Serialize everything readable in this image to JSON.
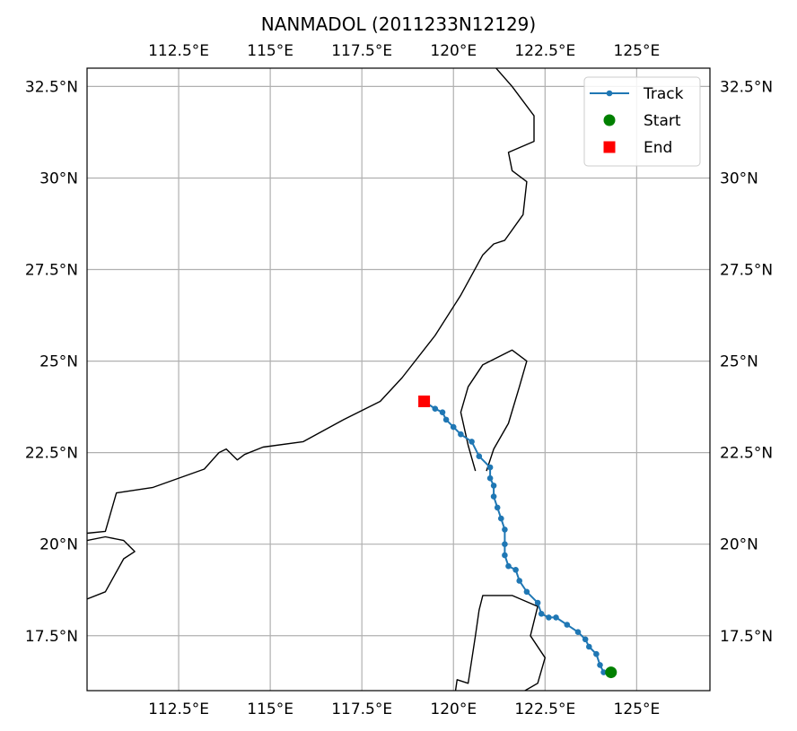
{
  "chart_data": {
    "type": "map-track",
    "title": "NANMADOL (2011233N12129)",
    "xlim": [
      110,
      127
    ],
    "ylim": [
      16,
      33
    ],
    "x_ticks": [
      {
        "value": 112.5,
        "label": "112.5°E"
      },
      {
        "value": 115,
        "label": "115°E"
      },
      {
        "value": 117.5,
        "label": "117.5°E"
      },
      {
        "value": 120,
        "label": "120°E"
      },
      {
        "value": 122.5,
        "label": "122.5°E"
      },
      {
        "value": 125,
        "label": "125°E"
      }
    ],
    "y_ticks": [
      {
        "value": 17.5,
        "label": "17.5°N"
      },
      {
        "value": 20,
        "label": "20°N"
      },
      {
        "value": 22.5,
        "label": "22.5°N"
      },
      {
        "value": 25,
        "label": "25°N"
      },
      {
        "value": 27.5,
        "label": "27.5°N"
      },
      {
        "value": 30,
        "label": "30°N"
      },
      {
        "value": 32.5,
        "label": "32.5°N"
      }
    ],
    "grid": true,
    "legend_position": "top-right",
    "legend": [
      {
        "label": "Track",
        "marker": "line-dot",
        "color": "#1f77b4"
      },
      {
        "label": "Start",
        "marker": "circle",
        "color": "#008000"
      },
      {
        "label": "End",
        "marker": "square",
        "color": "#ff0000"
      }
    ],
    "track": {
      "name": "Track",
      "color": "#1f77b4",
      "points": [
        [
          124.3,
          16.5
        ],
        [
          124.1,
          16.5
        ],
        [
          124.0,
          16.7
        ],
        [
          123.9,
          17.0
        ],
        [
          123.7,
          17.2
        ],
        [
          123.6,
          17.4
        ],
        [
          123.4,
          17.6
        ],
        [
          123.1,
          17.8
        ],
        [
          122.8,
          18.0
        ],
        [
          122.6,
          18.0
        ],
        [
          122.4,
          18.1
        ],
        [
          122.3,
          18.4
        ],
        [
          122.0,
          18.7
        ],
        [
          121.8,
          19.0
        ],
        [
          121.7,
          19.3
        ],
        [
          121.5,
          19.4
        ],
        [
          121.4,
          19.7
        ],
        [
          121.4,
          20.0
        ],
        [
          121.4,
          20.4
        ],
        [
          121.3,
          20.7
        ],
        [
          121.2,
          21.0
        ],
        [
          121.1,
          21.3
        ],
        [
          121.1,
          21.6
        ],
        [
          121.0,
          21.8
        ],
        [
          121.0,
          22.1
        ],
        [
          120.7,
          22.4
        ],
        [
          120.5,
          22.8
        ],
        [
          120.2,
          23.0
        ],
        [
          120.0,
          23.2
        ],
        [
          119.8,
          23.4
        ],
        [
          119.7,
          23.6
        ],
        [
          119.5,
          23.7
        ],
        [
          119.2,
          23.9
        ]
      ]
    },
    "start": {
      "lon": 124.3,
      "lat": 16.5,
      "color": "#008000"
    },
    "end": {
      "lon": 119.2,
      "lat": 23.9,
      "color": "#ff0000"
    },
    "coastlines": [
      [
        [
          110,
          20.3
        ],
        [
          110.5,
          20.35
        ],
        [
          110.8,
          21.4
        ],
        [
          111.8,
          21.55
        ],
        [
          113.2,
          22.05
        ],
        [
          113.6,
          22.5
        ],
        [
          113.8,
          22.6
        ],
        [
          114.1,
          22.3
        ],
        [
          114.3,
          22.45
        ],
        [
          114.8,
          22.65
        ],
        [
          115.9,
          22.8
        ],
        [
          117.0,
          23.4
        ],
        [
          118.0,
          23.9
        ],
        [
          118.6,
          24.55
        ],
        [
          119.5,
          25.7
        ],
        [
          120.2,
          26.8
        ],
        [
          120.8,
          27.9
        ],
        [
          121.1,
          28.2
        ],
        [
          121.4,
          28.3
        ],
        [
          121.9,
          29.0
        ],
        [
          122.0,
          29.9
        ],
        [
          121.6,
          30.2
        ],
        [
          121.5,
          30.7
        ],
        [
          122.2,
          31.0
        ],
        [
          122.2,
          31.7
        ],
        [
          121.6,
          32.5
        ],
        [
          120.9,
          33.3
        ]
      ],
      [
        [
          120.6,
          22.0
        ],
        [
          120.4,
          22.7
        ],
        [
          120.2,
          23.6
        ],
        [
          120.4,
          24.3
        ],
        [
          120.8,
          24.9
        ],
        [
          121.6,
          25.3
        ],
        [
          122.0,
          25.0
        ],
        [
          121.8,
          24.3
        ],
        [
          121.5,
          23.3
        ],
        [
          121.1,
          22.6
        ],
        [
          120.9,
          22.0
        ]
      ],
      [
        [
          110,
          18.5
        ],
        [
          110.5,
          18.7
        ],
        [
          111.0,
          19.6
        ],
        [
          111.3,
          19.8
        ],
        [
          111.0,
          20.1
        ],
        [
          110.5,
          20.2
        ],
        [
          110,
          20.1
        ]
      ],
      [
        [
          120.0,
          15.6
        ],
        [
          120.1,
          16.3
        ],
        [
          120.4,
          16.2
        ],
        [
          120.6,
          17.5
        ],
        [
          120.7,
          18.2
        ],
        [
          120.8,
          18.6
        ],
        [
          121.6,
          18.6
        ],
        [
          122.3,
          18.3
        ],
        [
          122.1,
          17.5
        ],
        [
          122.5,
          16.9
        ],
        [
          122.3,
          16.2
        ],
        [
          121.6,
          15.8
        ],
        [
          121.3,
          15.4
        ]
      ]
    ]
  }
}
